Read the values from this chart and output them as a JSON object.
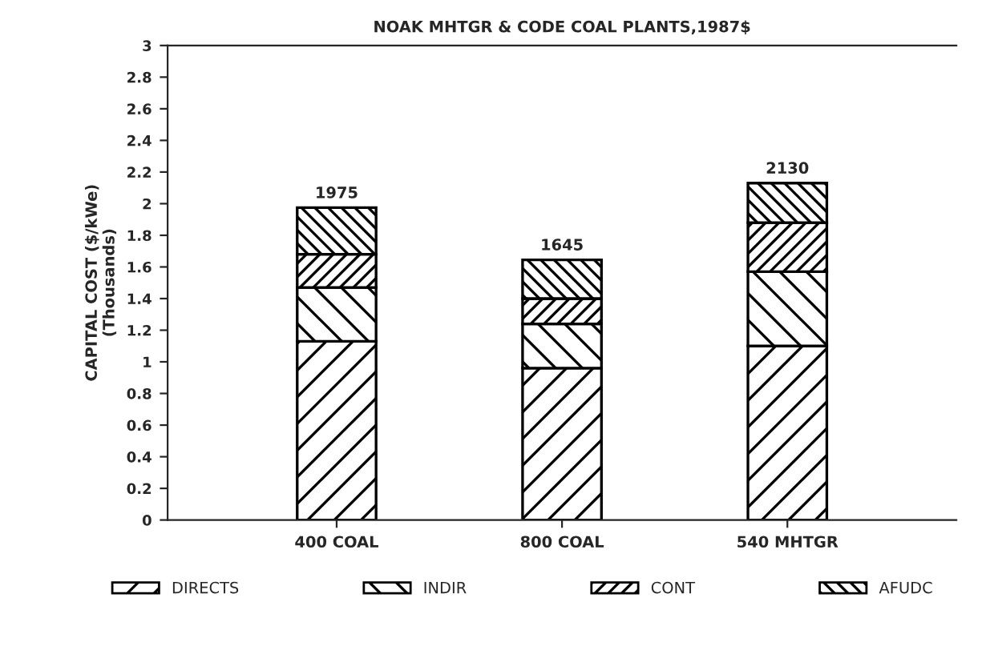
{
  "chart_data": {
    "type": "bar",
    "stacked": true,
    "title": "NOAK MHTGR & CODE COAL PLANTS,1987$",
    "ylabel": "CAPITAL COST ($/kWe)\n(Thousands)",
    "categories": [
      "400 COAL",
      "800 COAL",
      "540 MHTGR"
    ],
    "series": [
      {
        "name": "DIRECTS",
        "color": "#000000",
        "values": [
          1.13,
          0.96,
          1.1
        ]
      },
      {
        "name": "INDIR",
        "color": "#000000",
        "values": [
          0.34,
          0.28,
          0.47
        ]
      },
      {
        "name": "CONT",
        "color": "#000000",
        "values": [
          0.21,
          0.16,
          0.31
        ]
      },
      {
        "name": "AFUDC",
        "color": "#000000",
        "values": [
          0.295,
          0.245,
          0.25
        ]
      }
    ],
    "totals": [
      "1975",
      "1645",
      "2130"
    ],
    "ylim": [
      0,
      3
    ],
    "yticks": [
      0,
      0.2,
      0.4,
      0.6,
      0.8,
      1,
      1.2,
      1.4,
      1.6,
      1.8,
      2,
      2.2,
      2.4,
      2.6,
      2.8,
      3
    ],
    "grid": false,
    "legend": "bottom"
  }
}
